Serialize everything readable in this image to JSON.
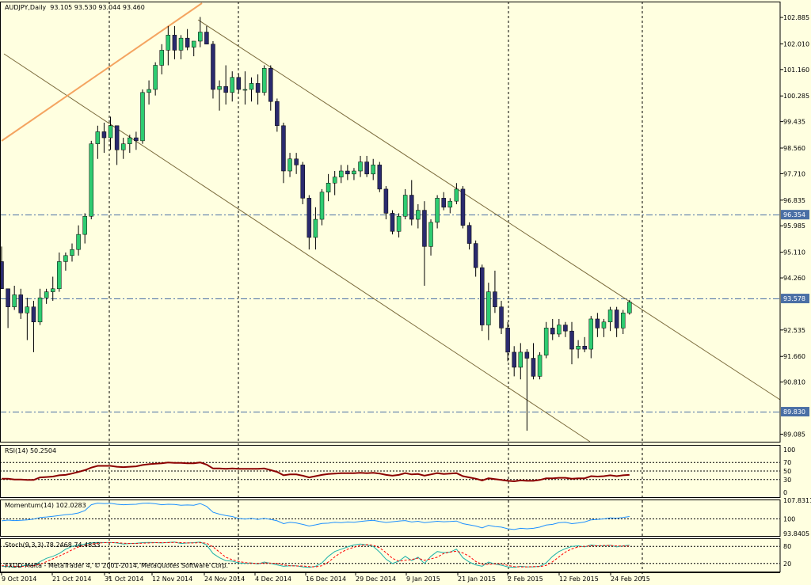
{
  "window": {
    "symbol": "AUDJPY,Daily",
    "ohlc": "93.105 93.530 93.044 93.460",
    "copyright": "FXDD Malta - MetaTrader 4, © 2001-2014, MetaQuotes Software Corp."
  },
  "colors": {
    "background": "#ffffe0",
    "bull_candle": "#2ecc71",
    "bear_candle": "#2a2a6e",
    "channel_line": "#7a6a3a",
    "orange_line": "#f4a460",
    "rsi_line": "#8b0000",
    "momentum_line": "#1e90ff",
    "stoch_main": "#20b2aa",
    "stoch_signal": "#ff0000",
    "hline_blue": "#4a6fa5",
    "price_marker": "#4a6fa5"
  },
  "price_axis": {
    "ticks": [
      "102.885",
      "102.010",
      "101.160",
      "100.285",
      "99.435",
      "98.560",
      "97.710",
      "96.835",
      "95.985",
      "95.110",
      "94.260",
      "92.535",
      "91.660",
      "90.810",
      "89.085"
    ],
    "hlines": [
      "96.354",
      "93.578",
      "89.830"
    ],
    "current": "93.578"
  },
  "time_axis": {
    "labels": [
      "9 Oct 2014",
      "21 Oct 2014",
      "31 Oct 2014",
      "12 Nov 2014",
      "24 Nov 2014",
      "4 Dec 2014",
      "16 Dec 2014",
      "29 Dec 2014",
      "9 Jan 2015",
      "21 Jan 2015",
      "2 Feb 2015",
      "12 Feb 2015",
      "24 Feb 2015"
    ]
  },
  "indicators": {
    "rsi": {
      "title": "RSI(14) 50.2504",
      "ticks": [
        "100",
        "70",
        "50",
        "30",
        "0"
      ]
    },
    "momentum": {
      "title": "Momentum(14) 102.0283",
      "ticks": [
        "107.8311",
        "100",
        "93.8405"
      ]
    },
    "stoch": {
      "title": "Stoch(9,3,3) 78.2468 74.4833",
      "ticks": [
        "80",
        "20"
      ]
    }
  },
  "chart_data": {
    "type": "candlestick",
    "title": "AUDJPY,Daily",
    "ylim": [
      89.085,
      102.885
    ],
    "candles": [
      {
        "o": 94.8,
        "h": 95.3,
        "l": 93.9,
        "c": 93.9
      },
      {
        "o": 93.9,
        "h": 93.9,
        "l": 92.6,
        "c": 93.3
      },
      {
        "o": 93.3,
        "h": 94.0,
        "l": 93.2,
        "c": 93.7
      },
      {
        "o": 93.7,
        "h": 93.9,
        "l": 92.9,
        "c": 93.1
      },
      {
        "o": 93.1,
        "h": 93.6,
        "l": 92.2,
        "c": 93.3
      },
      {
        "o": 93.3,
        "h": 93.5,
        "l": 91.8,
        "c": 92.8
      },
      {
        "o": 92.8,
        "h": 93.9,
        "l": 92.7,
        "c": 93.6
      },
      {
        "o": 93.6,
        "h": 93.9,
        "l": 93.4,
        "c": 93.8
      },
      {
        "o": 93.8,
        "h": 94.3,
        "l": 93.5,
        "c": 93.9
      },
      {
        "o": 93.9,
        "h": 95.1,
        "l": 93.8,
        "c": 94.8
      },
      {
        "o": 94.8,
        "h": 95.1,
        "l": 94.5,
        "c": 95.0
      },
      {
        "o": 95.0,
        "h": 95.4,
        "l": 94.8,
        "c": 95.2
      },
      {
        "o": 95.2,
        "h": 96.0,
        "l": 95.0,
        "c": 95.7
      },
      {
        "o": 95.7,
        "h": 96.4,
        "l": 95.4,
        "c": 96.3
      },
      {
        "o": 96.3,
        "h": 98.8,
        "l": 96.2,
        "c": 98.7
      },
      {
        "o": 98.7,
        "h": 99.3,
        "l": 98.2,
        "c": 99.1
      },
      {
        "o": 99.1,
        "h": 99.4,
        "l": 98.4,
        "c": 98.9
      },
      {
        "o": 98.9,
        "h": 99.6,
        "l": 98.5,
        "c": 99.3
      },
      {
        "o": 99.3,
        "h": 99.3,
        "l": 98.0,
        "c": 98.5
      },
      {
        "o": 98.5,
        "h": 98.9,
        "l": 98.2,
        "c": 98.7
      },
      {
        "o": 98.7,
        "h": 99.0,
        "l": 98.4,
        "c": 98.9
      },
      {
        "o": 98.9,
        "h": 99.1,
        "l": 98.5,
        "c": 98.8
      },
      {
        "o": 98.8,
        "h": 100.5,
        "l": 98.7,
        "c": 100.4
      },
      {
        "o": 100.4,
        "h": 100.8,
        "l": 100.0,
        "c": 100.5
      },
      {
        "o": 100.5,
        "h": 101.4,
        "l": 100.3,
        "c": 101.3
      },
      {
        "o": 101.3,
        "h": 102.0,
        "l": 101.0,
        "c": 101.8
      },
      {
        "o": 101.8,
        "h": 102.6,
        "l": 101.3,
        "c": 102.3
      },
      {
        "o": 102.3,
        "h": 102.6,
        "l": 101.5,
        "c": 101.8
      },
      {
        "o": 101.8,
        "h": 102.3,
        "l": 101.5,
        "c": 102.2
      },
      {
        "o": 102.2,
        "h": 102.5,
        "l": 101.8,
        "c": 101.9
      },
      {
        "o": 101.9,
        "h": 102.1,
        "l": 101.6,
        "c": 102.1
      },
      {
        "o": 102.1,
        "h": 102.9,
        "l": 101.9,
        "c": 102.4
      },
      {
        "o": 102.4,
        "h": 102.6,
        "l": 102.0,
        "c": 102.0
      },
      {
        "o": 102.0,
        "h": 102.1,
        "l": 100.2,
        "c": 100.5
      },
      {
        "o": 100.5,
        "h": 100.8,
        "l": 99.8,
        "c": 100.6
      },
      {
        "o": 100.6,
        "h": 101.3,
        "l": 100.0,
        "c": 100.4
      },
      {
        "o": 100.4,
        "h": 101.1,
        "l": 100.1,
        "c": 100.9
      },
      {
        "o": 100.9,
        "h": 101.0,
        "l": 100.4,
        "c": 100.5
      },
      {
        "o": 100.5,
        "h": 101.1,
        "l": 100.0,
        "c": 100.5
      },
      {
        "o": 100.5,
        "h": 100.9,
        "l": 100.1,
        "c": 100.7
      },
      {
        "o": 100.7,
        "h": 101.0,
        "l": 100.0,
        "c": 100.4
      },
      {
        "o": 100.4,
        "h": 101.3,
        "l": 100.3,
        "c": 101.2
      },
      {
        "o": 101.2,
        "h": 101.3,
        "l": 99.8,
        "c": 100.1
      },
      {
        "o": 100.1,
        "h": 100.2,
        "l": 99.1,
        "c": 99.3
      },
      {
        "o": 99.3,
        "h": 99.4,
        "l": 97.4,
        "c": 97.8
      },
      {
        "o": 97.8,
        "h": 98.4,
        "l": 97.6,
        "c": 98.2
      },
      {
        "o": 98.2,
        "h": 98.4,
        "l": 97.7,
        "c": 98.0
      },
      {
        "o": 98.0,
        "h": 98.1,
        "l": 96.7,
        "c": 96.9
      },
      {
        "o": 96.9,
        "h": 97.0,
        "l": 95.2,
        "c": 95.6
      },
      {
        "o": 95.6,
        "h": 96.6,
        "l": 95.2,
        "c": 96.2
      },
      {
        "o": 96.2,
        "h": 97.2,
        "l": 96.0,
        "c": 97.1
      },
      {
        "o": 97.1,
        "h": 97.7,
        "l": 96.8,
        "c": 97.4
      },
      {
        "o": 97.4,
        "h": 97.8,
        "l": 97.0,
        "c": 97.6
      },
      {
        "o": 97.6,
        "h": 98.0,
        "l": 97.4,
        "c": 97.8
      },
      {
        "o": 97.8,
        "h": 98.0,
        "l": 97.5,
        "c": 97.7
      },
      {
        "o": 97.7,
        "h": 97.9,
        "l": 97.5,
        "c": 97.8
      },
      {
        "o": 97.8,
        "h": 98.3,
        "l": 97.6,
        "c": 98.1
      },
      {
        "o": 98.1,
        "h": 98.3,
        "l": 97.6,
        "c": 97.7
      },
      {
        "o": 97.7,
        "h": 98.2,
        "l": 97.5,
        "c": 98.0
      },
      {
        "o": 98.0,
        "h": 98.1,
        "l": 97.1,
        "c": 97.2
      },
      {
        "o": 97.2,
        "h": 97.3,
        "l": 96.2,
        "c": 96.4
      },
      {
        "o": 96.4,
        "h": 96.5,
        "l": 95.7,
        "c": 95.8
      },
      {
        "o": 95.8,
        "h": 96.4,
        "l": 95.6,
        "c": 96.3
      },
      {
        "o": 96.3,
        "h": 97.2,
        "l": 96.2,
        "c": 97.0
      },
      {
        "o": 97.0,
        "h": 97.5,
        "l": 96.0,
        "c": 96.2
      },
      {
        "o": 96.2,
        "h": 96.7,
        "l": 95.9,
        "c": 96.5
      },
      {
        "o": 96.5,
        "h": 96.8,
        "l": 94.0,
        "c": 95.3
      },
      {
        "o": 95.3,
        "h": 96.2,
        "l": 95.0,
        "c": 96.1
      },
      {
        "o": 96.1,
        "h": 97.0,
        "l": 95.9,
        "c": 96.9
      },
      {
        "o": 96.9,
        "h": 97.1,
        "l": 96.5,
        "c": 96.6
      },
      {
        "o": 96.6,
        "h": 96.9,
        "l": 96.4,
        "c": 96.8
      },
      {
        "o": 96.8,
        "h": 97.4,
        "l": 96.7,
        "c": 97.2
      },
      {
        "o": 97.2,
        "h": 97.3,
        "l": 95.9,
        "c": 96.0
      },
      {
        "o": 96.0,
        "h": 96.1,
        "l": 95.2,
        "c": 95.4
      },
      {
        "o": 95.4,
        "h": 95.5,
        "l": 94.3,
        "c": 94.6
      },
      {
        "o": 94.6,
        "h": 94.7,
        "l": 92.5,
        "c": 92.7
      },
      {
        "o": 92.7,
        "h": 94.1,
        "l": 92.2,
        "c": 93.8
      },
      {
        "o": 93.8,
        "h": 94.5,
        "l": 93.1,
        "c": 93.3
      },
      {
        "o": 93.3,
        "h": 93.5,
        "l": 92.4,
        "c": 92.6
      },
      {
        "o": 92.6,
        "h": 92.8,
        "l": 91.5,
        "c": 91.8
      },
      {
        "o": 91.8,
        "h": 92.0,
        "l": 91.0,
        "c": 91.3
      },
      {
        "o": 91.3,
        "h": 92.1,
        "l": 90.9,
        "c": 91.8
      },
      {
        "o": 91.8,
        "h": 91.9,
        "l": 89.2,
        "c": 91.6
      },
      {
        "o": 91.6,
        "h": 92.1,
        "l": 90.9,
        "c": 91.0
      },
      {
        "o": 91.0,
        "h": 91.8,
        "l": 90.9,
        "c": 91.7
      },
      {
        "o": 91.7,
        "h": 92.8,
        "l": 91.6,
        "c": 92.6
      },
      {
        "o": 92.6,
        "h": 92.9,
        "l": 92.2,
        "c": 92.4
      },
      {
        "o": 92.4,
        "h": 92.9,
        "l": 92.3,
        "c": 92.7
      },
      {
        "o": 92.7,
        "h": 92.8,
        "l": 92.3,
        "c": 92.5
      },
      {
        "o": 92.5,
        "h": 92.8,
        "l": 91.4,
        "c": 91.9
      },
      {
        "o": 91.9,
        "h": 92.2,
        "l": 91.6,
        "c": 92.0
      },
      {
        "o": 92.0,
        "h": 92.3,
        "l": 91.8,
        "c": 91.9
      },
      {
        "o": 91.9,
        "h": 93.0,
        "l": 91.6,
        "c": 92.9
      },
      {
        "o": 92.9,
        "h": 93.1,
        "l": 92.3,
        "c": 92.6
      },
      {
        "o": 92.6,
        "h": 92.9,
        "l": 92.3,
        "c": 92.8
      },
      {
        "o": 92.8,
        "h": 93.3,
        "l": 92.5,
        "c": 93.2
      },
      {
        "o": 93.2,
        "h": 93.3,
        "l": 92.3,
        "c": 92.6
      },
      {
        "o": 92.6,
        "h": 93.2,
        "l": 92.4,
        "c": 93.1
      },
      {
        "o": 93.1,
        "h": 93.53,
        "l": 93.044,
        "c": 93.46
      }
    ],
    "rsi": [
      32,
      32,
      30,
      30,
      29,
      29,
      35,
      36,
      37,
      40,
      41,
      44,
      48,
      52,
      58,
      62,
      62,
      62,
      60,
      59,
      60,
      61,
      64,
      66,
      67,
      68,
      70,
      69,
      69,
      68,
      68,
      70,
      65,
      56,
      56,
      55,
      56,
      55,
      55,
      55,
      55,
      56,
      52,
      48,
      40,
      42,
      42,
      39,
      35,
      38,
      41,
      43,
      44,
      45,
      45,
      45,
      46,
      45,
      46,
      44,
      41,
      39,
      41,
      45,
      42,
      43,
      39,
      42,
      45,
      43,
      44,
      45,
      38,
      35,
      32,
      28,
      33,
      31,
      29,
      27,
      26,
      28,
      27,
      27,
      29,
      33,
      33,
      34,
      34,
      32,
      33,
      33,
      38,
      37,
      38,
      40,
      38,
      40,
      41
    ],
    "momentum": [
      99.2,
      99.5,
      99.3,
      99.4,
      99.6,
      99.9,
      100.6,
      100.8,
      101.1,
      101.4,
      101.8,
      102.0,
      102.5,
      103.5,
      106.0,
      106.7,
      106.5,
      106.6,
      106.2,
      106.0,
      106.1,
      106.2,
      106.6,
      106.7,
      106.4,
      106.0,
      106.2,
      106.1,
      105.8,
      105.9,
      105.8,
      106.5,
      105.3,
      102.8,
      102.0,
      101.4,
      101.0,
      100.2,
      99.9,
      100.2,
      99.8,
      100.2,
      99.8,
      99.2,
      98.0,
      98.6,
      98.3,
      97.7,
      97.0,
      97.5,
      98.1,
      98.2,
      98.6,
      98.4,
      98.7,
      98.6,
      98.9,
      99.2,
      99.4,
      98.9,
      98.5,
      98.8,
      99.1,
      99.3,
      98.7,
      99.0,
      98.4,
      98.7,
      99.0,
      98.8,
      98.9,
      99.1,
      98.0,
      97.5,
      97.0,
      96.2,
      97.3,
      96.8,
      96.5,
      95.8,
      95.5,
      96.0,
      95.8,
      96.0,
      96.5,
      97.4,
      97.7,
      98.4,
      98.6,
      98.0,
      98.3,
      98.7,
      99.6,
      99.8,
      100.0,
      100.4,
      100.3,
      100.6,
      101.0
    ],
    "stoch_main": [
      10,
      9,
      8,
      10,
      15,
      12,
      26,
      38,
      45,
      55,
      70,
      80,
      85,
      88,
      92,
      94,
      93,
      94,
      92,
      88,
      90,
      91,
      93,
      94,
      93,
      92,
      94,
      95,
      90,
      92,
      93,
      95,
      85,
      55,
      40,
      30,
      28,
      22,
      20,
      22,
      18,
      25,
      20,
      15,
      10,
      12,
      12,
      8,
      6,
      10,
      22,
      45,
      62,
      70,
      78,
      85,
      88,
      85,
      80,
      60,
      35,
      20,
      28,
      45,
      30,
      42,
      20,
      45,
      62,
      58,
      60,
      70,
      40,
      25,
      15,
      10,
      25,
      18,
      14,
      8,
      6,
      10,
      8,
      8,
      10,
      22,
      45,
      62,
      72,
      80,
      82,
      78,
      85,
      82,
      82,
      84,
      78,
      82,
      84
    ],
    "stoch_signal": [
      12,
      11,
      10,
      9,
      11,
      12,
      17,
      26,
      36,
      46,
      56,
      68,
      78,
      84,
      88,
      91,
      93,
      93,
      93,
      91,
      90,
      90,
      91,
      92,
      93,
      93,
      93,
      94,
      93,
      92,
      92,
      93,
      91,
      78,
      60,
      42,
      33,
      27,
      23,
      21,
      20,
      22,
      21,
      20,
      15,
      12,
      11,
      11,
      9,
      8,
      12,
      25,
      43,
      59,
      70,
      77,
      83,
      86,
      84,
      75,
      58,
      38,
      28,
      31,
      34,
      39,
      31,
      36,
      42,
      55,
      60,
      63,
      57,
      45,
      27,
      17,
      17,
      19,
      19,
      13,
      9,
      8,
      8,
      9,
      9,
      13,
      26,
      43,
      60,
      71,
      78,
      80,
      82,
      82,
      83,
      83,
      81,
      81,
      81
    ]
  }
}
